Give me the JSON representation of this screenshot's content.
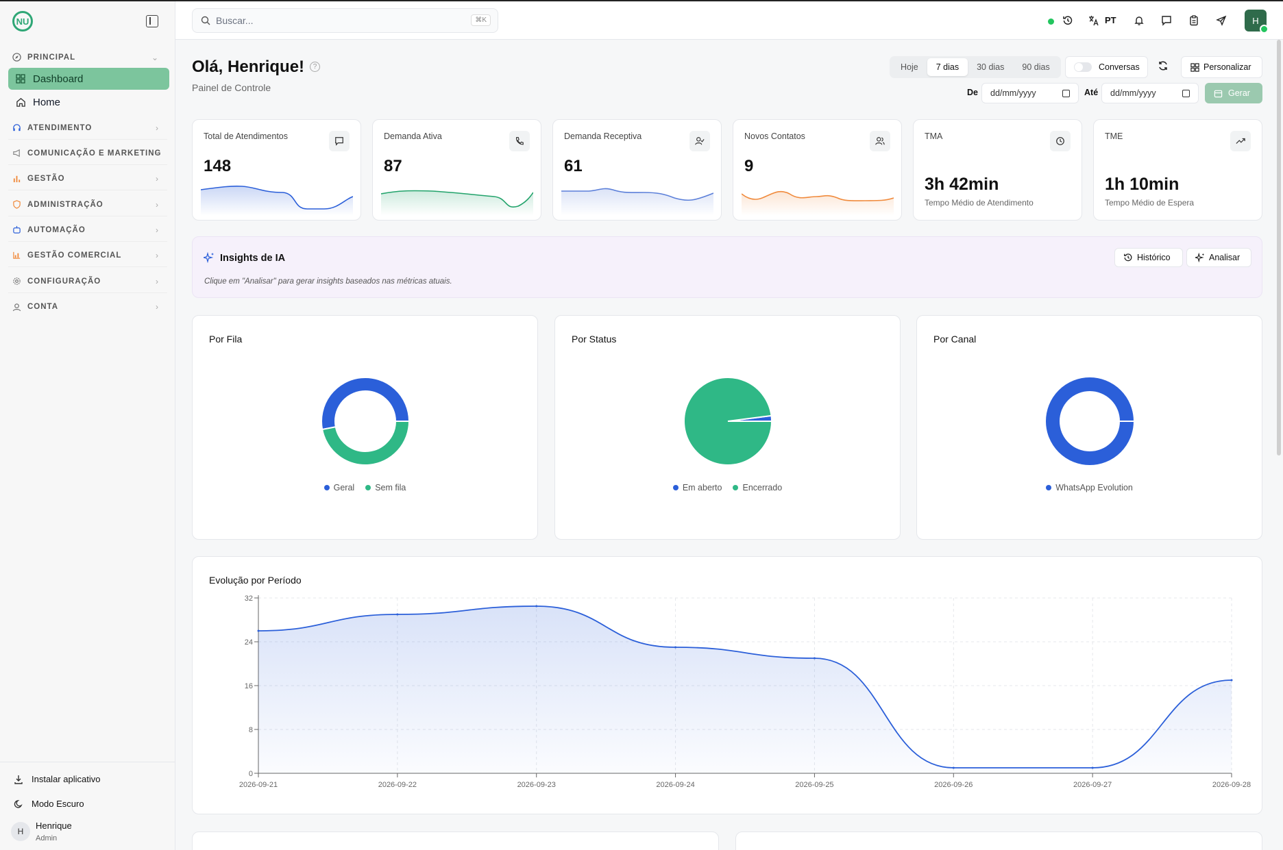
{
  "sidebar": {
    "logo": "NU",
    "sections": [
      {
        "label": "PRINCIPAL",
        "icon": "compass-icon"
      },
      {
        "label": "ATENDIMENTO",
        "icon": "headset-icon"
      },
      {
        "label": "COMUNICAÇÃO E MARKETING",
        "icon": "megaphone-icon"
      },
      {
        "label": "GESTÃO",
        "icon": "bar-chart-icon"
      },
      {
        "label": "ADMINISTRAÇÃO",
        "icon": "shield-icon"
      },
      {
        "label": "AUTOMAÇÃO",
        "icon": "robot-icon"
      },
      {
        "label": "GESTÃO COMERCIAL",
        "icon": "chart-icon"
      },
      {
        "label": "CONFIGURAÇÃO",
        "icon": "gear-icon"
      },
      {
        "label": "CONTA",
        "icon": "user-icon"
      }
    ],
    "items": [
      {
        "label": "Dashboard",
        "icon": "grid-icon",
        "active": true
      },
      {
        "label": "Home",
        "icon": "home-icon",
        "active": false
      }
    ],
    "bottom": {
      "install": "Instalar aplicativo",
      "dark_mode": "Modo Escuro",
      "user_initial": "H",
      "user_name": "Henrique",
      "user_role": "Admin"
    }
  },
  "header": {
    "search_placeholder": "Buscar...",
    "search_shortcut": "⌘K",
    "language": "PT",
    "avatar_initial": "H"
  },
  "main": {
    "greeting": "Olá, Henrique!",
    "subtitle": "Painel de Controle",
    "ranges": [
      "Hoje",
      "7 dias",
      "30 dias",
      "90 dias"
    ],
    "active_range": "7 dias",
    "conversations_toggle": "Conversas",
    "customize": "Personalizar",
    "date_from_label": "De",
    "date_to_label": "Até",
    "date_placeholder": "dd/mm/yyyy",
    "generate": "Gerar"
  },
  "kpis": [
    {
      "title": "Total de Atendimentos",
      "value": "148",
      "icon": "message-icon",
      "spark_color": "#2b5fd9"
    },
    {
      "title": "Demanda Ativa",
      "value": "87",
      "icon": "phone-icon",
      "spark_color": "#22a36b"
    },
    {
      "title": "Demanda Receptiva",
      "value": "61",
      "icon": "user-check-icon",
      "spark_color": "#5b7fd9"
    },
    {
      "title": "Novos Contatos",
      "value": "9",
      "icon": "users-icon",
      "spark_color": "#f08a3c"
    },
    {
      "title": "TMA",
      "value": "3h 42min",
      "subtitle": "Tempo Médio de Atendimento",
      "icon": "clock-icon"
    },
    {
      "title": "TME",
      "value": "1h 10min",
      "subtitle": "Tempo Médio de Espera",
      "icon": "trend-up-icon"
    }
  ],
  "insights": {
    "title": "Insights de IA",
    "description": "Clique em \"Analisar\" para gerar insights baseados nas métricas atuais.",
    "history_btn": "Histórico",
    "analyze_btn": "Analisar"
  },
  "colors": {
    "accent": "#2fa776",
    "blue": "#2b5fd9",
    "green": "#2fb886"
  },
  "chart_data": [
    {
      "type": "pie",
      "title": "Por Fila",
      "donut": true,
      "categories": [
        "Geral",
        "Sem fila"
      ],
      "values": [
        53,
        47
      ],
      "colors": [
        "#2b5fd9",
        "#2fb886"
      ]
    },
    {
      "type": "pie",
      "title": "Por Status",
      "donut": false,
      "categories": [
        "Em aberto",
        "Encerrado"
      ],
      "values": [
        3,
        145
      ],
      "colors": [
        "#2b5fd9",
        "#2fb886"
      ]
    },
    {
      "type": "pie",
      "title": "Por Canal",
      "donut": true,
      "categories": [
        "WhatsApp Evolution"
      ],
      "values": [
        148
      ],
      "colors": [
        "#2b5fd9"
      ]
    },
    {
      "type": "area",
      "title": "Evolução por Período",
      "x": [
        "2026-09-21",
        "2026-09-22",
        "2026-09-23",
        "2026-09-24",
        "2026-09-25",
        "2026-09-26",
        "2026-09-27",
        "2026-09-28"
      ],
      "values": [
        26,
        29,
        30.5,
        23,
        21,
        1,
        1,
        17
      ],
      "yticks": [
        0,
        8,
        16,
        24,
        32
      ],
      "ylim": [
        0,
        32
      ],
      "grid": true,
      "color": "#2b5fd9"
    }
  ]
}
